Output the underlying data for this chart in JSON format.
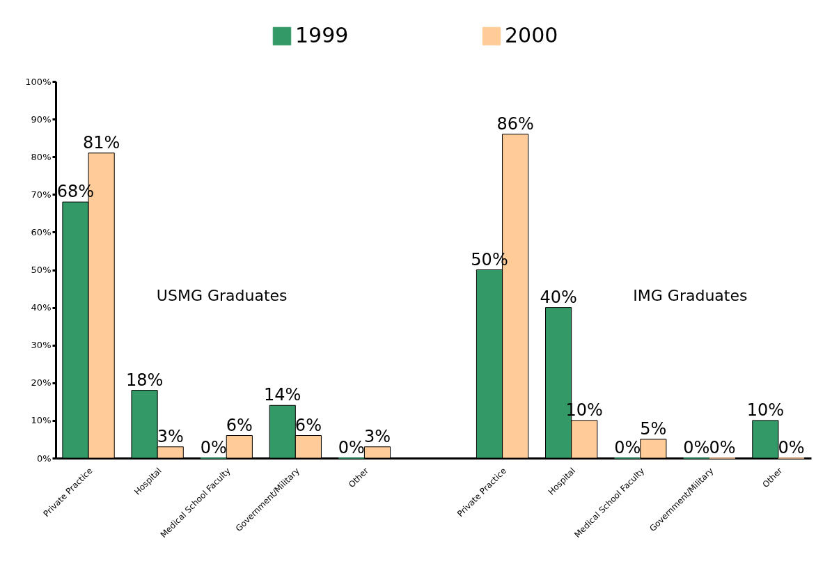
{
  "chart_data": {
    "type": "bar",
    "categories": [
      "Private Practice",
      "Hospital",
      "Medical School Faculty",
      "Government/Military",
      "Other",
      null,
      "Private Practice",
      "Hospital",
      "Medical School Faculty",
      "Government/Military",
      "Other"
    ],
    "series": [
      {
        "name": "1999",
        "color": "#339966",
        "values": [
          68,
          18,
          0,
          14,
          0,
          null,
          50,
          40,
          0,
          0,
          10
        ],
        "value_labels": [
          "68%",
          "18%",
          "0%",
          "14%",
          "0%",
          null,
          "50%",
          "40%",
          "0%",
          "0%",
          "10%"
        ]
      },
      {
        "name": "2000",
        "color": "#ffcc99",
        "values": [
          81,
          3,
          6,
          6,
          3,
          null,
          86,
          10,
          5,
          0,
          0
        ],
        "value_labels": [
          "81%",
          "3%",
          "6%",
          "6%",
          "3%",
          null,
          "86%",
          "10%",
          "5%",
          "0%",
          "0%"
        ]
      }
    ],
    "ylim": [
      0,
      100
    ],
    "yticks": [
      {
        "value": 0,
        "label": "0%"
      },
      {
        "value": 10,
        "label": "10%"
      },
      {
        "value": 20,
        "label": "20%"
      },
      {
        "value": 30,
        "label": "30%"
      },
      {
        "value": 40,
        "label": "40%"
      },
      {
        "value": 50,
        "label": "50%"
      },
      {
        "value": 60,
        "label": "60%"
      },
      {
        "value": 70,
        "label": "70%"
      },
      {
        "value": 80,
        "label": "80%"
      },
      {
        "value": 90,
        "label": "90%"
      },
      {
        "value": 100,
        "label": "100%"
      }
    ],
    "grid": false,
    "legend": "top",
    "annotations": [
      "USMG Graduates",
      "IMG Graduates"
    ]
  }
}
